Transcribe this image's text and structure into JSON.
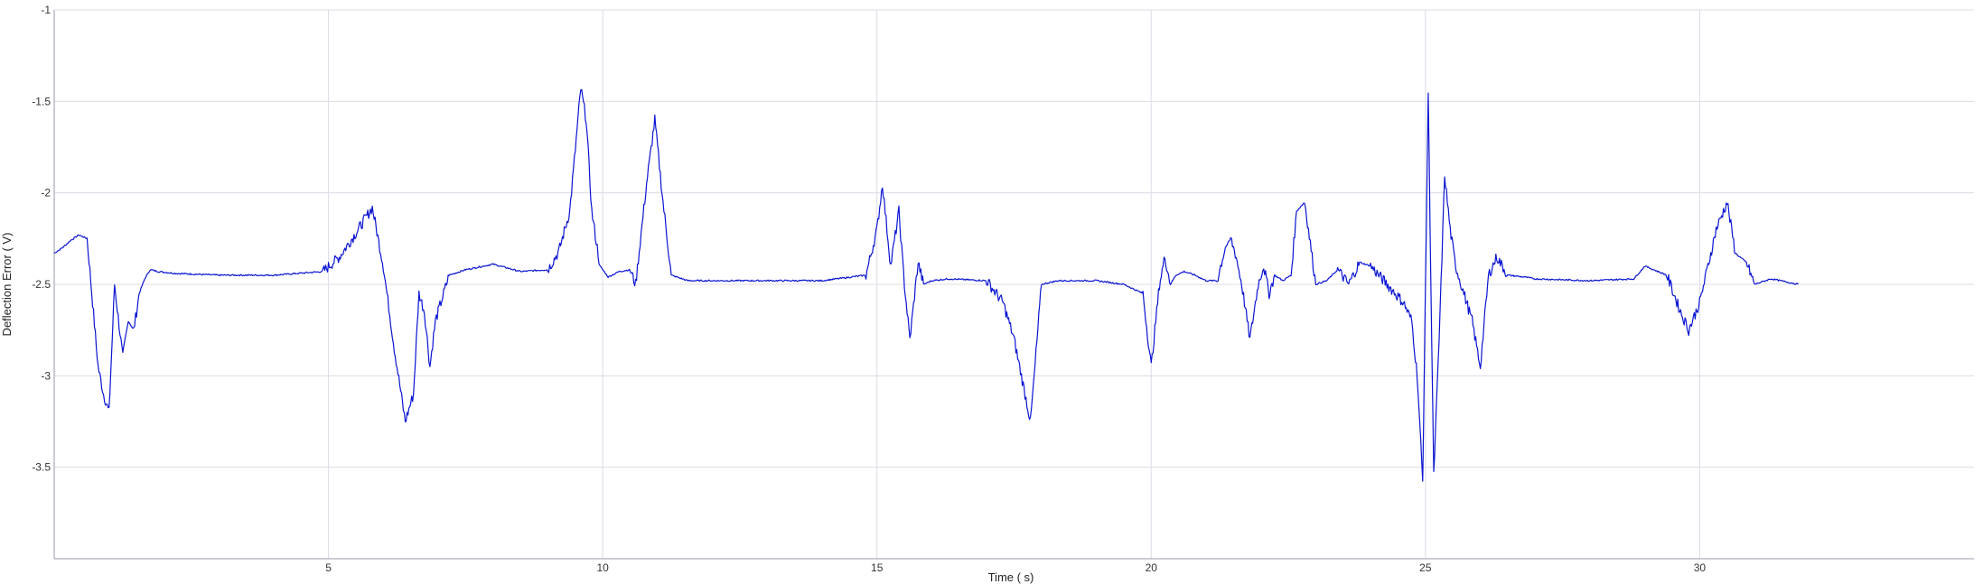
{
  "chart_data": {
    "type": "line",
    "title": "",
    "xlabel": "Time ( s)",
    "ylabel": "Deflection Error ( V)",
    "xlim": [
      0,
      35
    ],
    "ylim": [
      -4,
      -1
    ],
    "grid": true,
    "x_ticks": [
      5,
      10,
      15,
      20,
      25,
      30
    ],
    "x_tick_labels": [
      "5",
      "10",
      "15",
      "20",
      "25",
      "30"
    ],
    "y_ticks": [
      -1,
      -1.5,
      -2,
      -2.5,
      -3,
      -3.5
    ],
    "y_tick_labels": [
      "-1",
      "-1.5",
      "-2",
      "-2.5",
      "-3",
      "-3.5"
    ],
    "colors": {
      "line": "#0a14d2",
      "grid": "#dcdce6",
      "axis": "#9a9aa8"
    },
    "series": [
      {
        "name": "Deflection Error",
        "x": [
          0.0,
          0.15,
          0.3,
          0.45,
          0.6,
          0.7,
          0.8,
          0.9,
          1.0,
          1.1,
          1.25,
          1.35,
          1.45,
          1.55,
          1.65,
          1.75,
          1.9,
          2.2,
          3.0,
          4.0,
          4.9,
          5.2,
          5.5,
          5.8,
          6.0,
          6.2,
          6.4,
          6.55,
          6.65,
          6.75,
          6.85,
          6.95,
          7.05,
          7.2,
          7.5,
          8.0,
          8.5,
          9.0,
          9.2,
          9.4,
          9.6,
          9.7,
          9.8,
          9.95,
          10.1,
          10.3,
          10.5,
          10.6,
          10.8,
          10.95,
          11.1,
          11.25,
          11.45,
          11.55,
          12.0,
          13.0,
          14.0,
          14.8,
          15.0,
          15.1,
          15.25,
          15.4,
          15.5,
          15.6,
          15.75,
          15.85,
          16.0,
          16.3,
          17.0,
          17.3,
          17.5,
          17.8,
          18.0,
          18.3,
          18.6,
          19.0,
          19.5,
          19.85,
          20.0,
          20.15,
          20.25,
          20.35,
          20.45,
          20.6,
          20.8,
          21.0,
          21.2,
          21.35,
          21.45,
          21.55,
          21.65,
          21.8,
          21.95,
          22.05,
          22.15,
          22.25,
          22.4,
          22.55,
          22.65,
          22.8,
          23.0,
          23.2,
          23.4,
          23.6,
          23.8,
          24.0,
          24.3,
          24.6,
          24.75,
          24.85,
          24.95,
          25.05,
          25.15,
          25.25,
          25.35,
          25.45,
          25.55,
          25.7,
          25.85,
          26.0,
          26.15,
          26.3,
          26.5,
          26.8,
          27.0,
          28.0,
          28.8,
          29.0,
          29.4,
          29.65,
          29.8,
          30.0,
          30.3,
          30.5,
          30.65,
          30.85,
          31.0,
          31.3,
          31.8
        ],
        "values": [
          -2.33,
          -2.3,
          -2.26,
          -2.23,
          -2.25,
          -2.6,
          -2.95,
          -3.1,
          -3.2,
          -2.5,
          -2.9,
          -2.7,
          -2.75,
          -2.55,
          -2.47,
          -2.42,
          -2.43,
          -2.44,
          -2.45,
          -2.45,
          -2.43,
          -2.35,
          -2.22,
          -2.08,
          -2.4,
          -2.85,
          -3.25,
          -3.1,
          -2.55,
          -2.65,
          -2.95,
          -2.7,
          -2.6,
          -2.45,
          -2.42,
          -2.39,
          -2.43,
          -2.42,
          -2.32,
          -2.1,
          -1.43,
          -1.6,
          -2.1,
          -2.4,
          -2.46,
          -2.43,
          -2.42,
          -2.5,
          -1.95,
          -1.6,
          -2.05,
          -2.45,
          -2.47,
          -2.48,
          -2.48,
          -2.48,
          -2.48,
          -2.45,
          -2.2,
          -1.95,
          -2.4,
          -2.1,
          -2.5,
          -2.8,
          -2.38,
          -2.5,
          -2.48,
          -2.47,
          -2.48,
          -2.6,
          -2.8,
          -3.25,
          -2.5,
          -2.48,
          -2.48,
          -2.48,
          -2.5,
          -2.55,
          -2.95,
          -2.5,
          -2.35,
          -2.5,
          -2.45,
          -2.43,
          -2.45,
          -2.48,
          -2.48,
          -2.3,
          -2.25,
          -2.35,
          -2.5,
          -2.8,
          -2.5,
          -2.4,
          -2.55,
          -2.45,
          -2.48,
          -2.45,
          -2.1,
          -2.05,
          -2.5,
          -2.48,
          -2.42,
          -2.5,
          -2.38,
          -2.4,
          -2.5,
          -2.6,
          -2.7,
          -3.0,
          -3.58,
          -1.45,
          -3.55,
          -2.8,
          -1.9,
          -2.2,
          -2.4,
          -2.55,
          -2.7,
          -2.95,
          -2.45,
          -2.35,
          -2.45,
          -2.46,
          -2.47,
          -2.48,
          -2.47,
          -2.4,
          -2.45,
          -2.65,
          -2.75,
          -2.6,
          -2.2,
          -2.05,
          -2.33,
          -2.38,
          -2.5,
          -2.47,
          -2.5
        ]
      }
    ]
  }
}
